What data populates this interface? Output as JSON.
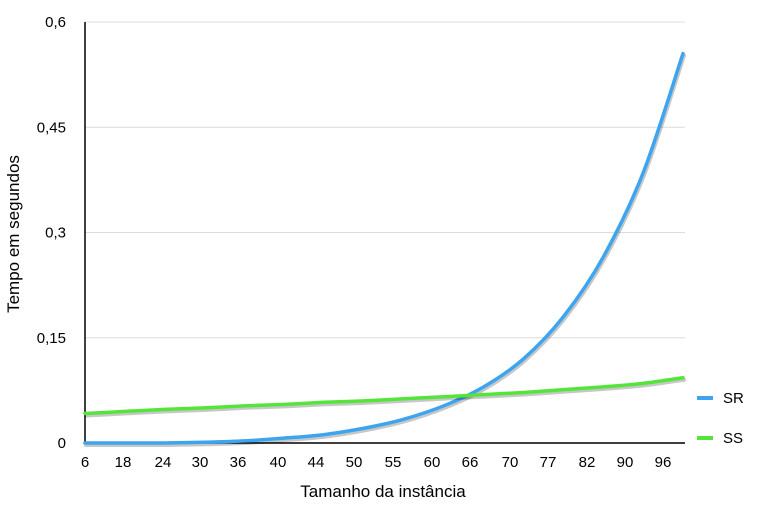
{
  "chart_data": {
    "type": "line",
    "title": "",
    "xlabel": "Tamanho da instância",
    "ylabel": "Tempo em segundos",
    "categories": [
      "6",
      "18",
      "24",
      "30",
      "36",
      "40",
      "44",
      "50",
      "55",
      "60",
      "66",
      "70",
      "77",
      "82",
      "90",
      "96"
    ],
    "ylim": [
      0,
      0.6
    ],
    "yticks": [
      "0",
      "0,15",
      "0,3",
      "0,45",
      "0,6"
    ],
    "grid": "horizontal",
    "legend_position": "right",
    "series": [
      {
        "name": "SR",
        "color": "#3da5f0",
        "values": [
          0.0,
          0.0,
          0.0,
          0.001,
          0.003,
          0.007,
          0.012,
          0.021,
          0.034,
          0.053,
          0.08,
          0.12,
          0.18,
          0.265,
          0.385,
          0.555
        ]
      },
      {
        "name": "SS",
        "color": "#55e53a",
        "values": [
          0.042,
          0.045,
          0.048,
          0.05,
          0.053,
          0.055,
          0.058,
          0.06,
          0.063,
          0.066,
          0.069,
          0.072,
          0.076,
          0.08,
          0.085,
          0.093
        ]
      }
    ]
  }
}
